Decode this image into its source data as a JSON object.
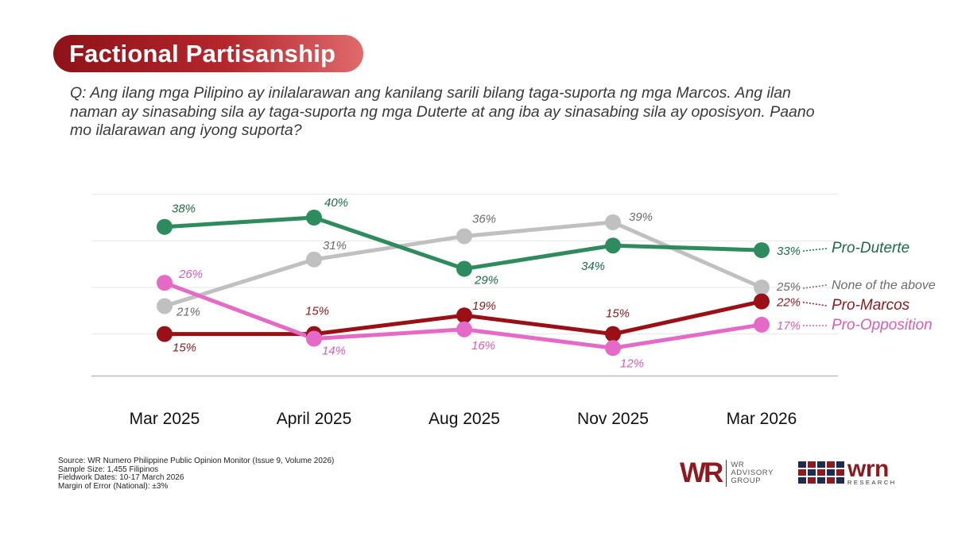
{
  "title": "Factional Partisanship",
  "question": "Q: Ang ilang mga Pilipino ay inilalarawan ang kanilang sarili bilang taga-suporta ng mga Marcos. Ang ilan naman ay sinasabing sila ay taga-suporta ng mga Duterte at ang iba ay sinasabing sila ay oposisyon. Paano mo ilalarawan ang iyong suporta?",
  "chart_data": {
    "type": "line",
    "categories": [
      "Mar 2025",
      "April 2025",
      "Aug 2025",
      "Nov 2025",
      "Mar 2026"
    ],
    "ylim": [
      5,
      45
    ],
    "grid": true,
    "series": [
      {
        "name": "None of the above",
        "color": "#c0c0c0",
        "label_color": "#6b6b6b",
        "values": [
          21,
          31,
          36,
          39,
          25
        ],
        "labels": [
          "21%",
          "31%",
          "36%",
          "39%",
          "25%"
        ]
      },
      {
        "name": "Pro-Marcos",
        "color": "#9b1016",
        "label_color": "#8e1a1f",
        "values": [
          15,
          15,
          19,
          15,
          22
        ],
        "labels": [
          "15%",
          "15%",
          "19%",
          "15%",
          "22%"
        ]
      },
      {
        "name": "Pro-Opposition",
        "color": "#e56ac8",
        "label_color": "#d85cbd",
        "values": [
          26,
          14,
          16,
          12,
          17
        ],
        "labels": [
          "26%",
          "14%",
          "16%",
          "12%",
          "17%"
        ]
      },
      {
        "name": "Pro-Duterte",
        "color": "#2e8b5e",
        "label_color": "#1f6b47",
        "values": [
          38,
          40,
          29,
          34,
          33
        ],
        "labels": [
          "38%",
          "40%",
          "29%",
          "34%",
          "33%"
        ]
      }
    ]
  },
  "source": {
    "line1": "Source: WR Numero Philippine Public Opinion Monitor (Issue 9, Volume 2026)",
    "line2": "Sample Size: 1,455 Filipinos",
    "line3": "Fieldwork Dates: 10-17 March 2026",
    "line4": "Margin of Error (National): ±3%"
  },
  "logos": {
    "wr_mark": "WR",
    "wr_line1": "WR",
    "wr_line2": "ADVISORY",
    "wr_line3": "GROUP",
    "wrn_mark": "wrn",
    "wrn_sub": "RESEARCH"
  }
}
